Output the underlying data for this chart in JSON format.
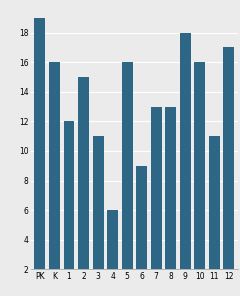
{
  "categories": [
    "PK",
    "K",
    "1",
    "2",
    "3",
    "4",
    "5",
    "6",
    "7",
    "8",
    "9",
    "10",
    "11",
    "12"
  ],
  "values": [
    19,
    16,
    12,
    15,
    11,
    6,
    16,
    9,
    13,
    13,
    18,
    16,
    11,
    17
  ],
  "bar_color": "#2e6685",
  "ylim": [
    2,
    20
  ],
  "yticks": [
    2,
    4,
    6,
    8,
    10,
    12,
    14,
    16,
    18
  ],
  "background_color": "#ebebeb",
  "tick_fontsize": 5.5
}
